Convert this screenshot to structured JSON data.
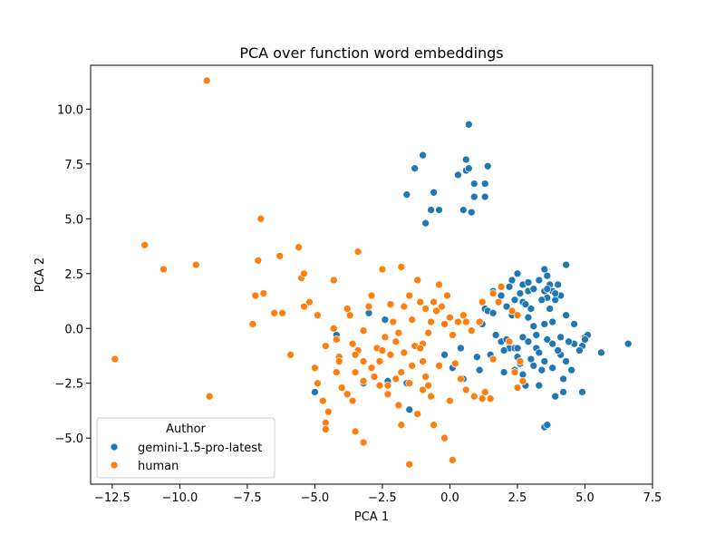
{
  "chart_data": {
    "type": "scatter",
    "title": "PCA over function word embeddings",
    "xlabel": "PCA 1",
    "ylabel": "PCA 2",
    "xlim": [
      -13.3,
      7.5
    ],
    "ylim": [
      -7.1,
      12.0
    ],
    "xticks": [
      -12.5,
      -10.0,
      -7.5,
      -5.0,
      -2.5,
      0.0,
      2.5,
      5.0,
      7.5
    ],
    "xtick_labels": [
      "−12.5",
      "−10.0",
      "−7.5",
      "−5.0",
      "−2.5",
      "0.0",
      "2.5",
      "5.0",
      "7.5"
    ],
    "yticks": [
      -5.0,
      -2.5,
      0.0,
      2.5,
      5.0,
      7.5,
      10.0
    ],
    "ytick_labels": [
      "−5.0",
      "−2.5",
      "0.0",
      "2.5",
      "5.0",
      "7.5",
      "10.0"
    ],
    "grid": false,
    "legend": {
      "title": "Author",
      "placement": "lower-left"
    },
    "series": [
      {
        "name": "gemini-1.5-pro-latest",
        "color": "#1f77b4",
        "points": [
          [
            -1.3,
            7.3
          ],
          [
            -1.0,
            7.9
          ],
          [
            -0.6,
            6.2
          ],
          [
            -1.6,
            6.1
          ],
          [
            -0.4,
            5.4
          ],
          [
            -0.7,
            5.4
          ],
          [
            -0.9,
            4.8
          ],
          [
            0.3,
            7.0
          ],
          [
            0.6,
            7.2
          ],
          [
            0.7,
            7.3
          ],
          [
            0.9,
            6.6
          ],
          [
            0.6,
            7.7
          ],
          [
            0.7,
            9.3
          ],
          [
            1.4,
            7.4
          ],
          [
            1.3,
            6.6
          ],
          [
            1.3,
            6.0
          ],
          [
            0.9,
            6.0
          ],
          [
            0.5,
            5.4
          ],
          [
            0.8,
            5.3
          ],
          [
            -3.0,
            0.7
          ],
          [
            -2.4,
            0.4
          ],
          [
            -4.2,
            -0.3
          ],
          [
            -5.0,
            -2.9
          ],
          [
            -3.2,
            -2.5
          ],
          [
            -2.3,
            -2.4
          ],
          [
            -1.6,
            -2.5
          ],
          [
            -1.5,
            -3.7
          ],
          [
            -0.2,
            -1.2
          ],
          [
            1.0,
            -1.3
          ],
          [
            1.1,
            -1.9
          ],
          [
            1.5,
            -1.2
          ],
          [
            0.5,
            -2.3
          ],
          [
            0.1,
            -1.8
          ],
          [
            0.4,
            -0.9
          ],
          [
            1.3,
            0.9
          ],
          [
            1.4,
            0.8
          ],
          [
            1.6,
            0.7
          ],
          [
            1.2,
            0.2
          ],
          [
            1.7,
            -0.3
          ],
          [
            1.9,
            -0.6
          ],
          [
            2.1,
            -0.5
          ],
          [
            2.2,
            -0.9
          ],
          [
            2.0,
            -1.0
          ],
          [
            2.4,
            -0.9
          ],
          [
            2.7,
            -0.4
          ],
          [
            2.9,
            -0.6
          ],
          [
            3.0,
            -1.4
          ],
          [
            2.6,
            -1.6
          ],
          [
            2.4,
            -1.9
          ],
          [
            2.7,
            -2.1
          ],
          [
            3.2,
            -0.9
          ],
          [
            3.3,
            -1.1
          ],
          [
            3.6,
            -0.5
          ],
          [
            3.8,
            -0.7
          ],
          [
            3.5,
            -1.5
          ],
          [
            3.8,
            -1.8
          ],
          [
            4.1,
            -1.2
          ],
          [
            4.3,
            -1.5
          ],
          [
            4.5,
            -1.9
          ],
          [
            4.2,
            -2.3
          ],
          [
            4.0,
            -1.0
          ],
          [
            4.6,
            -0.7
          ],
          [
            4.9,
            -0.8
          ],
          [
            5.0,
            -0.4
          ],
          [
            5.1,
            -0.3
          ],
          [
            5.0,
            -0.5
          ],
          [
            5.6,
            -1.1
          ],
          [
            6.6,
            -0.7
          ],
          [
            4.9,
            -2.9
          ],
          [
            4.2,
            -2.9
          ],
          [
            3.9,
            -3.1
          ],
          [
            3.3,
            -2.6
          ],
          [
            3.5,
            -4.5
          ],
          [
            3.6,
            -4.4
          ],
          [
            2.5,
            -0.9
          ],
          [
            2.5,
            -1.3
          ],
          [
            2.7,
            1.2
          ],
          [
            2.9,
            1.7
          ],
          [
            2.7,
            2.0
          ],
          [
            2.9,
            2.1
          ],
          [
            3.1,
            1.8
          ],
          [
            3.3,
            2.2
          ],
          [
            3.5,
            2.7
          ],
          [
            3.6,
            2.4
          ],
          [
            3.7,
            2.0
          ],
          [
            3.5,
            1.7
          ],
          [
            3.6,
            1.4
          ],
          [
            3.9,
            1.3
          ],
          [
            3.8,
            1.7
          ],
          [
            4.0,
            2.0
          ],
          [
            4.3,
            2.9
          ],
          [
            4.1,
            1.5
          ],
          [
            3.7,
            0.9
          ],
          [
            4.3,
            0.6
          ],
          [
            4.6,
            0.2
          ],
          [
            3.5,
            0.2
          ],
          [
            3.2,
            -0.3
          ],
          [
            2.9,
            0.5
          ],
          [
            3.1,
            0.1
          ],
          [
            2.3,
            0.6
          ],
          [
            2.1,
            1.0
          ],
          [
            2.4,
            1.3
          ],
          [
            2.6,
            1.6
          ],
          [
            2.5,
            2.5
          ],
          [
            2.2,
            1.9
          ],
          [
            1.9,
            1.5
          ],
          [
            1.6,
            1.7
          ],
          [
            3.4,
            1.3
          ],
          [
            2.8,
            1.1
          ],
          [
            3.0,
            0.9
          ],
          [
            3.8,
            0.3
          ],
          [
            4.4,
            -0.6
          ],
          [
            4.8,
            -1.0
          ],
          [
            3.1,
            -1.7
          ],
          [
            2.0,
            -2.0
          ],
          [
            2.8,
            -2.6
          ],
          [
            3.4,
            -1.9
          ],
          [
            4.1,
            -0.4
          ],
          [
            3.9,
            1.6
          ],
          [
            3.6,
            1.8
          ],
          [
            2.3,
            2.2
          ]
        ]
      },
      {
        "name": "human",
        "color": "#ff7f0e",
        "points": [
          [
            -9.0,
            11.3
          ],
          [
            -12.4,
            -1.4
          ],
          [
            -11.3,
            3.8
          ],
          [
            -10.6,
            2.7
          ],
          [
            -9.4,
            2.9
          ],
          [
            -8.9,
            -3.1
          ],
          [
            -7.0,
            5.0
          ],
          [
            -7.1,
            3.1
          ],
          [
            -7.2,
            1.5
          ],
          [
            -6.9,
            1.6
          ],
          [
            -7.3,
            0.2
          ],
          [
            -6.3,
            3.3
          ],
          [
            -6.5,
            0.7
          ],
          [
            -6.2,
            0.7
          ],
          [
            -5.6,
            3.7
          ],
          [
            -5.5,
            2.3
          ],
          [
            -5.4,
            2.5
          ],
          [
            -5.2,
            1.2
          ],
          [
            -5.4,
            1.0
          ],
          [
            -4.9,
            0.6
          ],
          [
            -5.9,
            -1.2
          ],
          [
            -5.0,
            -1.8
          ],
          [
            -4.9,
            -2.5
          ],
          [
            -4.6,
            -0.8
          ],
          [
            -4.3,
            0.0
          ],
          [
            -4.2,
            -0.5
          ],
          [
            -4.1,
            -1.3
          ],
          [
            -4.2,
            -2.0
          ],
          [
            -4.0,
            -2.7
          ],
          [
            -4.7,
            -3.3
          ],
          [
            -4.5,
            -3.8
          ],
          [
            -4.6,
            -4.3
          ],
          [
            -4.6,
            -4.6
          ],
          [
            -3.8,
            -3.0
          ],
          [
            -3.6,
            -3.3
          ],
          [
            -3.5,
            -4.7
          ],
          [
            -3.2,
            -5.2
          ],
          [
            -4.3,
            2.2
          ],
          [
            -3.7,
            0.6
          ],
          [
            -3.6,
            -0.7
          ],
          [
            -3.4,
            -1.0
          ],
          [
            -3.2,
            -0.1
          ],
          [
            -3.0,
            1.0
          ],
          [
            -2.9,
            1.5
          ],
          [
            -3.4,
            3.5
          ],
          [
            -2.5,
            2.7
          ],
          [
            -2.2,
            1.1
          ],
          [
            -1.8,
            2.8
          ],
          [
            -1.5,
            1.5
          ],
          [
            -1.7,
            1.0
          ],
          [
            -1.9,
            -0.2
          ],
          [
            -2.0,
            -0.6
          ],
          [
            -2.2,
            -1.2
          ],
          [
            -2.6,
            -1.5
          ],
          [
            -2.9,
            -1.8
          ],
          [
            -3.2,
            -1.5
          ],
          [
            -3.5,
            -2.0
          ],
          [
            -3.2,
            -2.4
          ],
          [
            -2.8,
            -2.2
          ],
          [
            -2.6,
            -2.6
          ],
          [
            -2.3,
            -3.0
          ],
          [
            -1.9,
            -3.5
          ],
          [
            -1.8,
            -2.0
          ],
          [
            -1.5,
            -2.5
          ],
          [
            -1.4,
            -1.7
          ],
          [
            -1.0,
            -1.5
          ],
          [
            -0.9,
            -2.2
          ],
          [
            -1.0,
            -2.8
          ],
          [
            -0.7,
            -3.1
          ],
          [
            -1.2,
            -3.9
          ],
          [
            -0.6,
            -4.4
          ],
          [
            -1.8,
            -4.4
          ],
          [
            -1.5,
            -6.2
          ],
          [
            -1.0,
            -0.7
          ],
          [
            -0.8,
            -0.2
          ],
          [
            -0.7,
            0.3
          ],
          [
            -0.5,
            0.8
          ],
          [
            -0.3,
            1.0
          ],
          [
            -1.2,
            2.2
          ],
          [
            -1.1,
            1.2
          ],
          [
            -0.9,
            0.9
          ],
          [
            -0.6,
            1.2
          ],
          [
            -0.2,
            0.2
          ],
          [
            0.0,
            0.5
          ],
          [
            0.1,
            -0.3
          ],
          [
            0.3,
            0.3
          ],
          [
            0.5,
            0.6
          ],
          [
            0.6,
            0.3
          ],
          [
            0.8,
            -0.1
          ],
          [
            0.2,
            -1.6
          ],
          [
            0.4,
            -2.3
          ],
          [
            0.0,
            -3.3
          ],
          [
            0.6,
            -2.8
          ],
          [
            0.9,
            -3.1
          ],
          [
            1.2,
            -3.2
          ],
          [
            1.3,
            -2.9
          ],
          [
            1.5,
            -3.2
          ],
          [
            1.1,
            0.3
          ],
          [
            1.2,
            1.2
          ],
          [
            1.6,
            1.6
          ],
          [
            1.9,
            1.9
          ],
          [
            1.8,
            1.2
          ],
          [
            2.3,
            0.8
          ],
          [
            2.5,
            0.6
          ],
          [
            2.2,
            -0.6
          ],
          [
            2.6,
            -1.5
          ],
          [
            2.4,
            -2.0
          ],
          [
            2.5,
            -2.7
          ],
          [
            2.7,
            -2.4
          ],
          [
            1.6,
            -1.4
          ],
          [
            -0.2,
            -5.0
          ],
          [
            0.1,
            -6.0
          ],
          [
            -0.8,
            -2.6
          ],
          [
            -1.3,
            -0.8
          ],
          [
            -0.4,
            -1.7
          ],
          [
            -2.4,
            -0.4
          ],
          [
            -2.1,
            0.3
          ],
          [
            -3.5,
            -1.2
          ],
          [
            -2.7,
            -0.9
          ],
          [
            -1.7,
            -1.1
          ],
          [
            -2.0,
            -2.3
          ],
          [
            -2.5,
            -1.0
          ],
          [
            -0.4,
            2.0
          ],
          [
            -0.1,
            1.5
          ],
          [
            -1.4,
            0.4
          ],
          [
            -3.8,
            0.9
          ],
          [
            -4.1,
            -1.5
          ],
          [
            -2.3,
            -2.6
          ],
          [
            -1.1,
            -0.9
          ]
        ]
      }
    ]
  }
}
